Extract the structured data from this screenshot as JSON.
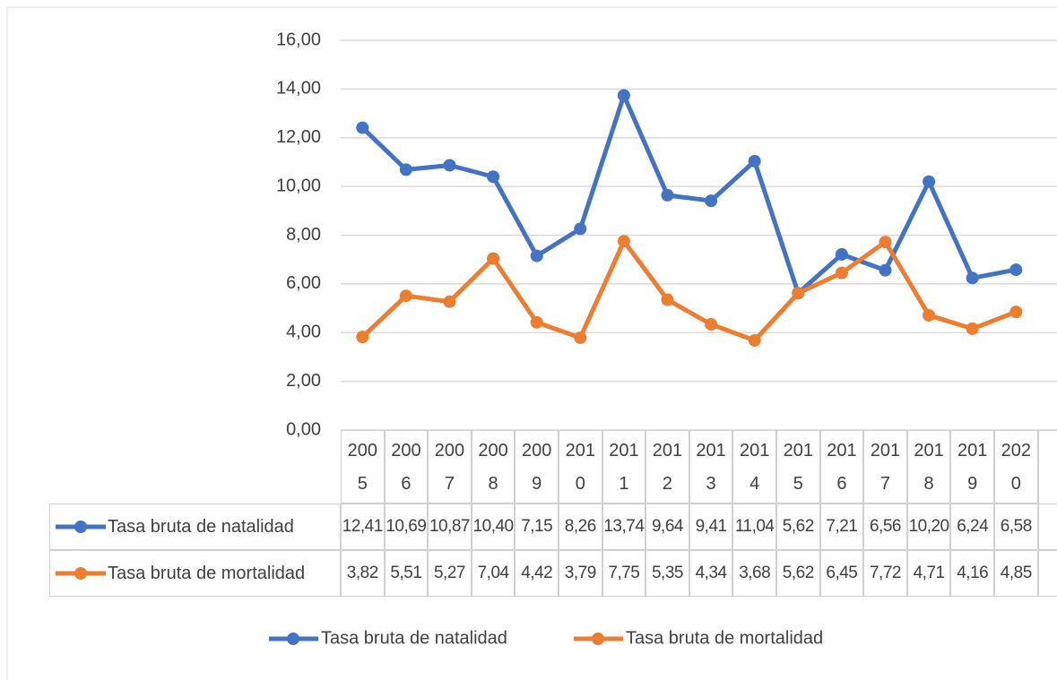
{
  "chart_data": {
    "type": "line",
    "categories": [
      "2005",
      "2006",
      "2007",
      "2008",
      "2009",
      "2010",
      "2011",
      "2012",
      "2013",
      "2014",
      "2015",
      "2016",
      "2017",
      "2018",
      "2019",
      "2020"
    ],
    "series": [
      {
        "name": "Tasa bruta de natalidad",
        "color": "#4472c4",
        "values": [
          12.41,
          10.69,
          10.87,
          10.4,
          7.15,
          8.26,
          13.74,
          9.64,
          9.41,
          11.04,
          5.62,
          7.21,
          6.56,
          10.2,
          6.24,
          6.58
        ],
        "value_labels": [
          "12,41",
          "10,69",
          "10,87",
          "10,40",
          "7,15",
          "8,26",
          "13,74",
          "9,64",
          "9,41",
          "11,04",
          "5,62",
          "7,21",
          "6,56",
          "10,20",
          "6,24",
          "6,58"
        ]
      },
      {
        "name": "Tasa bruta de mortalidad",
        "color": "#ed7d31",
        "values": [
          3.82,
          5.51,
          5.27,
          7.04,
          4.42,
          3.79,
          7.75,
          5.35,
          4.34,
          3.68,
          5.62,
          6.45,
          7.72,
          4.71,
          4.16,
          4.85
        ],
        "value_labels": [
          "3,82",
          "5,51",
          "5,27",
          "7,04",
          "4,42",
          "3,79",
          "7,75",
          "5,35",
          "4,34",
          "3,68",
          "5,62",
          "6,45",
          "7,72",
          "4,71",
          "4,16",
          "4,85"
        ]
      }
    ],
    "ylim": [
      0,
      16
    ],
    "yticks": [
      {
        "value": 0,
        "label": "0,00"
      },
      {
        "value": 2,
        "label": "2,00"
      },
      {
        "value": 4,
        "label": "4,00"
      },
      {
        "value": 6,
        "label": "6,00"
      },
      {
        "value": 8,
        "label": "8,00"
      },
      {
        "value": 10,
        "label": "10,00"
      },
      {
        "value": 12,
        "label": "12,00"
      },
      {
        "value": 14,
        "label": "14,00"
      },
      {
        "value": 16,
        "label": "16,00"
      }
    ],
    "grid": true,
    "legend": "bottom"
  }
}
